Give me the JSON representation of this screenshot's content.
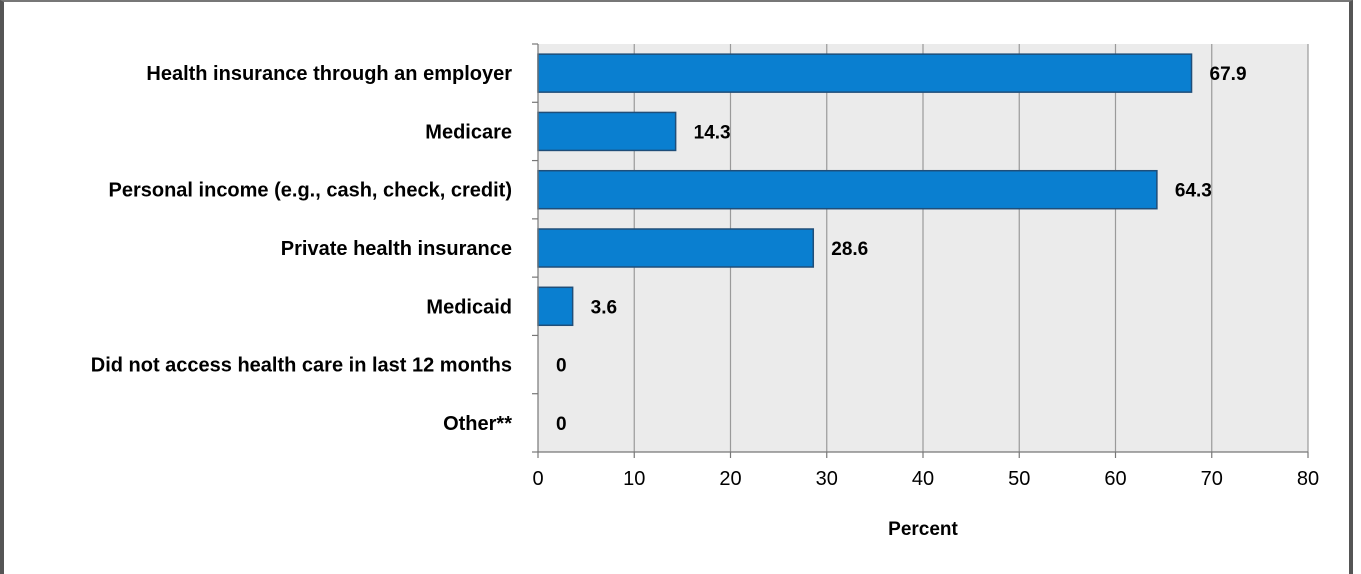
{
  "chart_data": {
    "type": "bar",
    "orientation": "horizontal",
    "categories": [
      "Health insurance through an employer",
      "Medicare",
      "Personal income (e.g., cash, check, credit)",
      "Private health insurance",
      "Medicaid",
      "Did not access health care in last 12 months",
      "Other**"
    ],
    "values": [
      67.9,
      14.3,
      64.3,
      28.6,
      3.6,
      0,
      0
    ],
    "value_labels": [
      "67.9",
      "14.3",
      "64.3",
      "28.6",
      "3.6",
      "0",
      "0"
    ],
    "title": "",
    "xlabel": "Percent",
    "ylabel": "",
    "xlim": [
      0,
      80
    ],
    "xticks": [
      0,
      10,
      20,
      30,
      40,
      50,
      60,
      70,
      80
    ],
    "grid": "vertical",
    "legend": "none",
    "colors": {
      "bar": "#0a7fd0",
      "bar_edge": "#1f4e79",
      "plot_background": "#ebebeb",
      "gridline": "#9a9a9a"
    }
  }
}
